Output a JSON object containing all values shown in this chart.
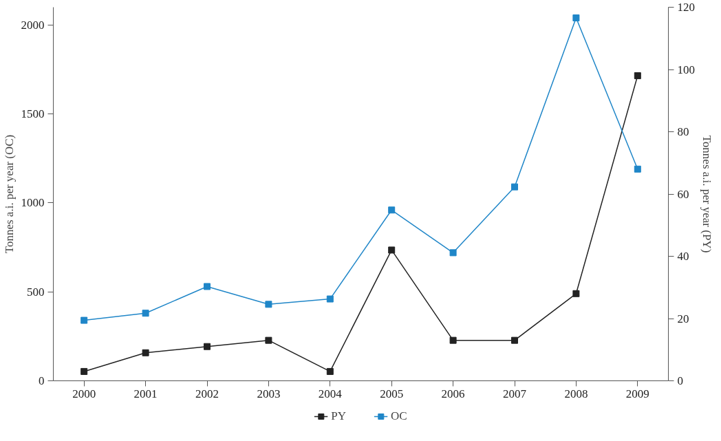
{
  "chart_data": {
    "type": "line",
    "categories": [
      "2000",
      "2001",
      "2002",
      "2003",
      "2004",
      "2005",
      "2006",
      "2007",
      "2008",
      "2009"
    ],
    "ylabel": "Tonnes a.i. per year (OC)",
    "y2label": "Tonnes a.i. per year (PY)",
    "ylim": [
      0,
      2100
    ],
    "yticks": [
      0,
      500,
      1000,
      1500,
      2000
    ],
    "y2lim": [
      0,
      120
    ],
    "y2ticks": [
      0,
      20,
      40,
      60,
      80,
      100,
      120
    ],
    "series": [
      {
        "name": "PY",
        "color": "#222222",
        "axis": "y2",
        "values": [
          3,
          9,
          11,
          13,
          3,
          42,
          13,
          13,
          28,
          98
        ]
      },
      {
        "name": "OC",
        "color": "#1f86c8",
        "values": [
          340,
          380,
          530,
          430,
          460,
          960,
          720,
          1090,
          2040,
          1190
        ]
      }
    ],
    "marker": "square",
    "line_style": "solid",
    "grid": false,
    "legend": "bottom"
  }
}
